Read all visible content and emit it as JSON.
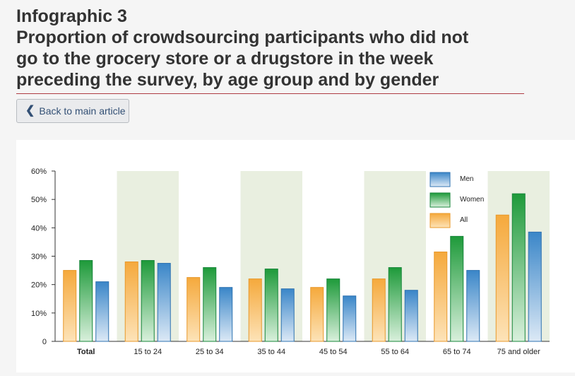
{
  "title": {
    "line1": "Infographic 3",
    "line2": "Proportion of crowdsourcing participants who did not",
    "line3": "go to the grocery store or a drugstore in the week",
    "line4": "preceding the survey, by age group and by gender"
  },
  "back_button": {
    "label": "Back to main article"
  },
  "colors": {
    "men": "#3a86c8",
    "women": "#1e9a3a",
    "all": "#f5a93c",
    "band": "#e9efe0",
    "rule": "#af3c43"
  },
  "chart_data": {
    "type": "bar",
    "categories": [
      "Total",
      "15 to 24",
      "25 to 34",
      "35 to 44",
      "45 to 54",
      "55 to 64",
      "65 to 74",
      "75 and older"
    ],
    "series": [
      {
        "name": "All",
        "values": [
          25,
          28,
          22.5,
          22,
          19,
          22,
          31.5,
          44.5
        ]
      },
      {
        "name": "Women",
        "values": [
          28.5,
          28.5,
          26,
          25.5,
          22,
          26,
          37,
          52
        ]
      },
      {
        "name": "Men",
        "values": [
          21,
          27.5,
          19,
          18.5,
          16,
          18,
          25,
          38.5
        ]
      }
    ],
    "legend": [
      "Men",
      "Women",
      "All"
    ],
    "y_ticks": [
      "0",
      "10%",
      "20%",
      "30%",
      "40%",
      "50%",
      "60%"
    ],
    "ylim": [
      0,
      60
    ],
    "title": "",
    "xlabel": "",
    "ylabel": ""
  }
}
